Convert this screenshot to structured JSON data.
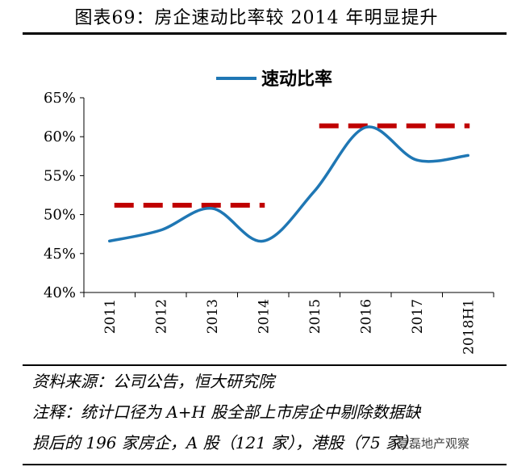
{
  "figure_title": "图表69：房企速动比率较 2014 年明显提升",
  "chart_data": {
    "type": "line",
    "categories": [
      "2011",
      "2012",
      "2013",
      "2014",
      "2015",
      "2016",
      "2017",
      "2018H1"
    ],
    "series": [
      {
        "name": "速动比率",
        "color": "#1f77b4",
        "values": [
          46.6,
          48.0,
          50.8,
          46.6,
          53.0,
          61.2,
          57.0,
          57.6
        ]
      }
    ],
    "reference_lines": [
      {
        "from": "2011",
        "to": "2014",
        "value": 51.2,
        "color": "#c00000",
        "style": "dashed"
      },
      {
        "from": "2015",
        "to": "2018H1",
        "value": 61.4,
        "color": "#c00000",
        "style": "dashed"
      }
    ],
    "yticks": [
      "40%",
      "45%",
      "50%",
      "55%",
      "60%",
      "65%"
    ],
    "ylim": [
      40,
      65
    ],
    "legend_position": "top-center",
    "grid": false
  },
  "footer": {
    "source": "资料来源：公司公告，恒大研究院",
    "note_line1": "注释：统计口径为 A+H 股全部上市房企中剔除数据缺",
    "note_line2": "损后的 196 家房企，A 股（121 家），港股（75 家）",
    "watermark": "夏磊地产观察"
  }
}
